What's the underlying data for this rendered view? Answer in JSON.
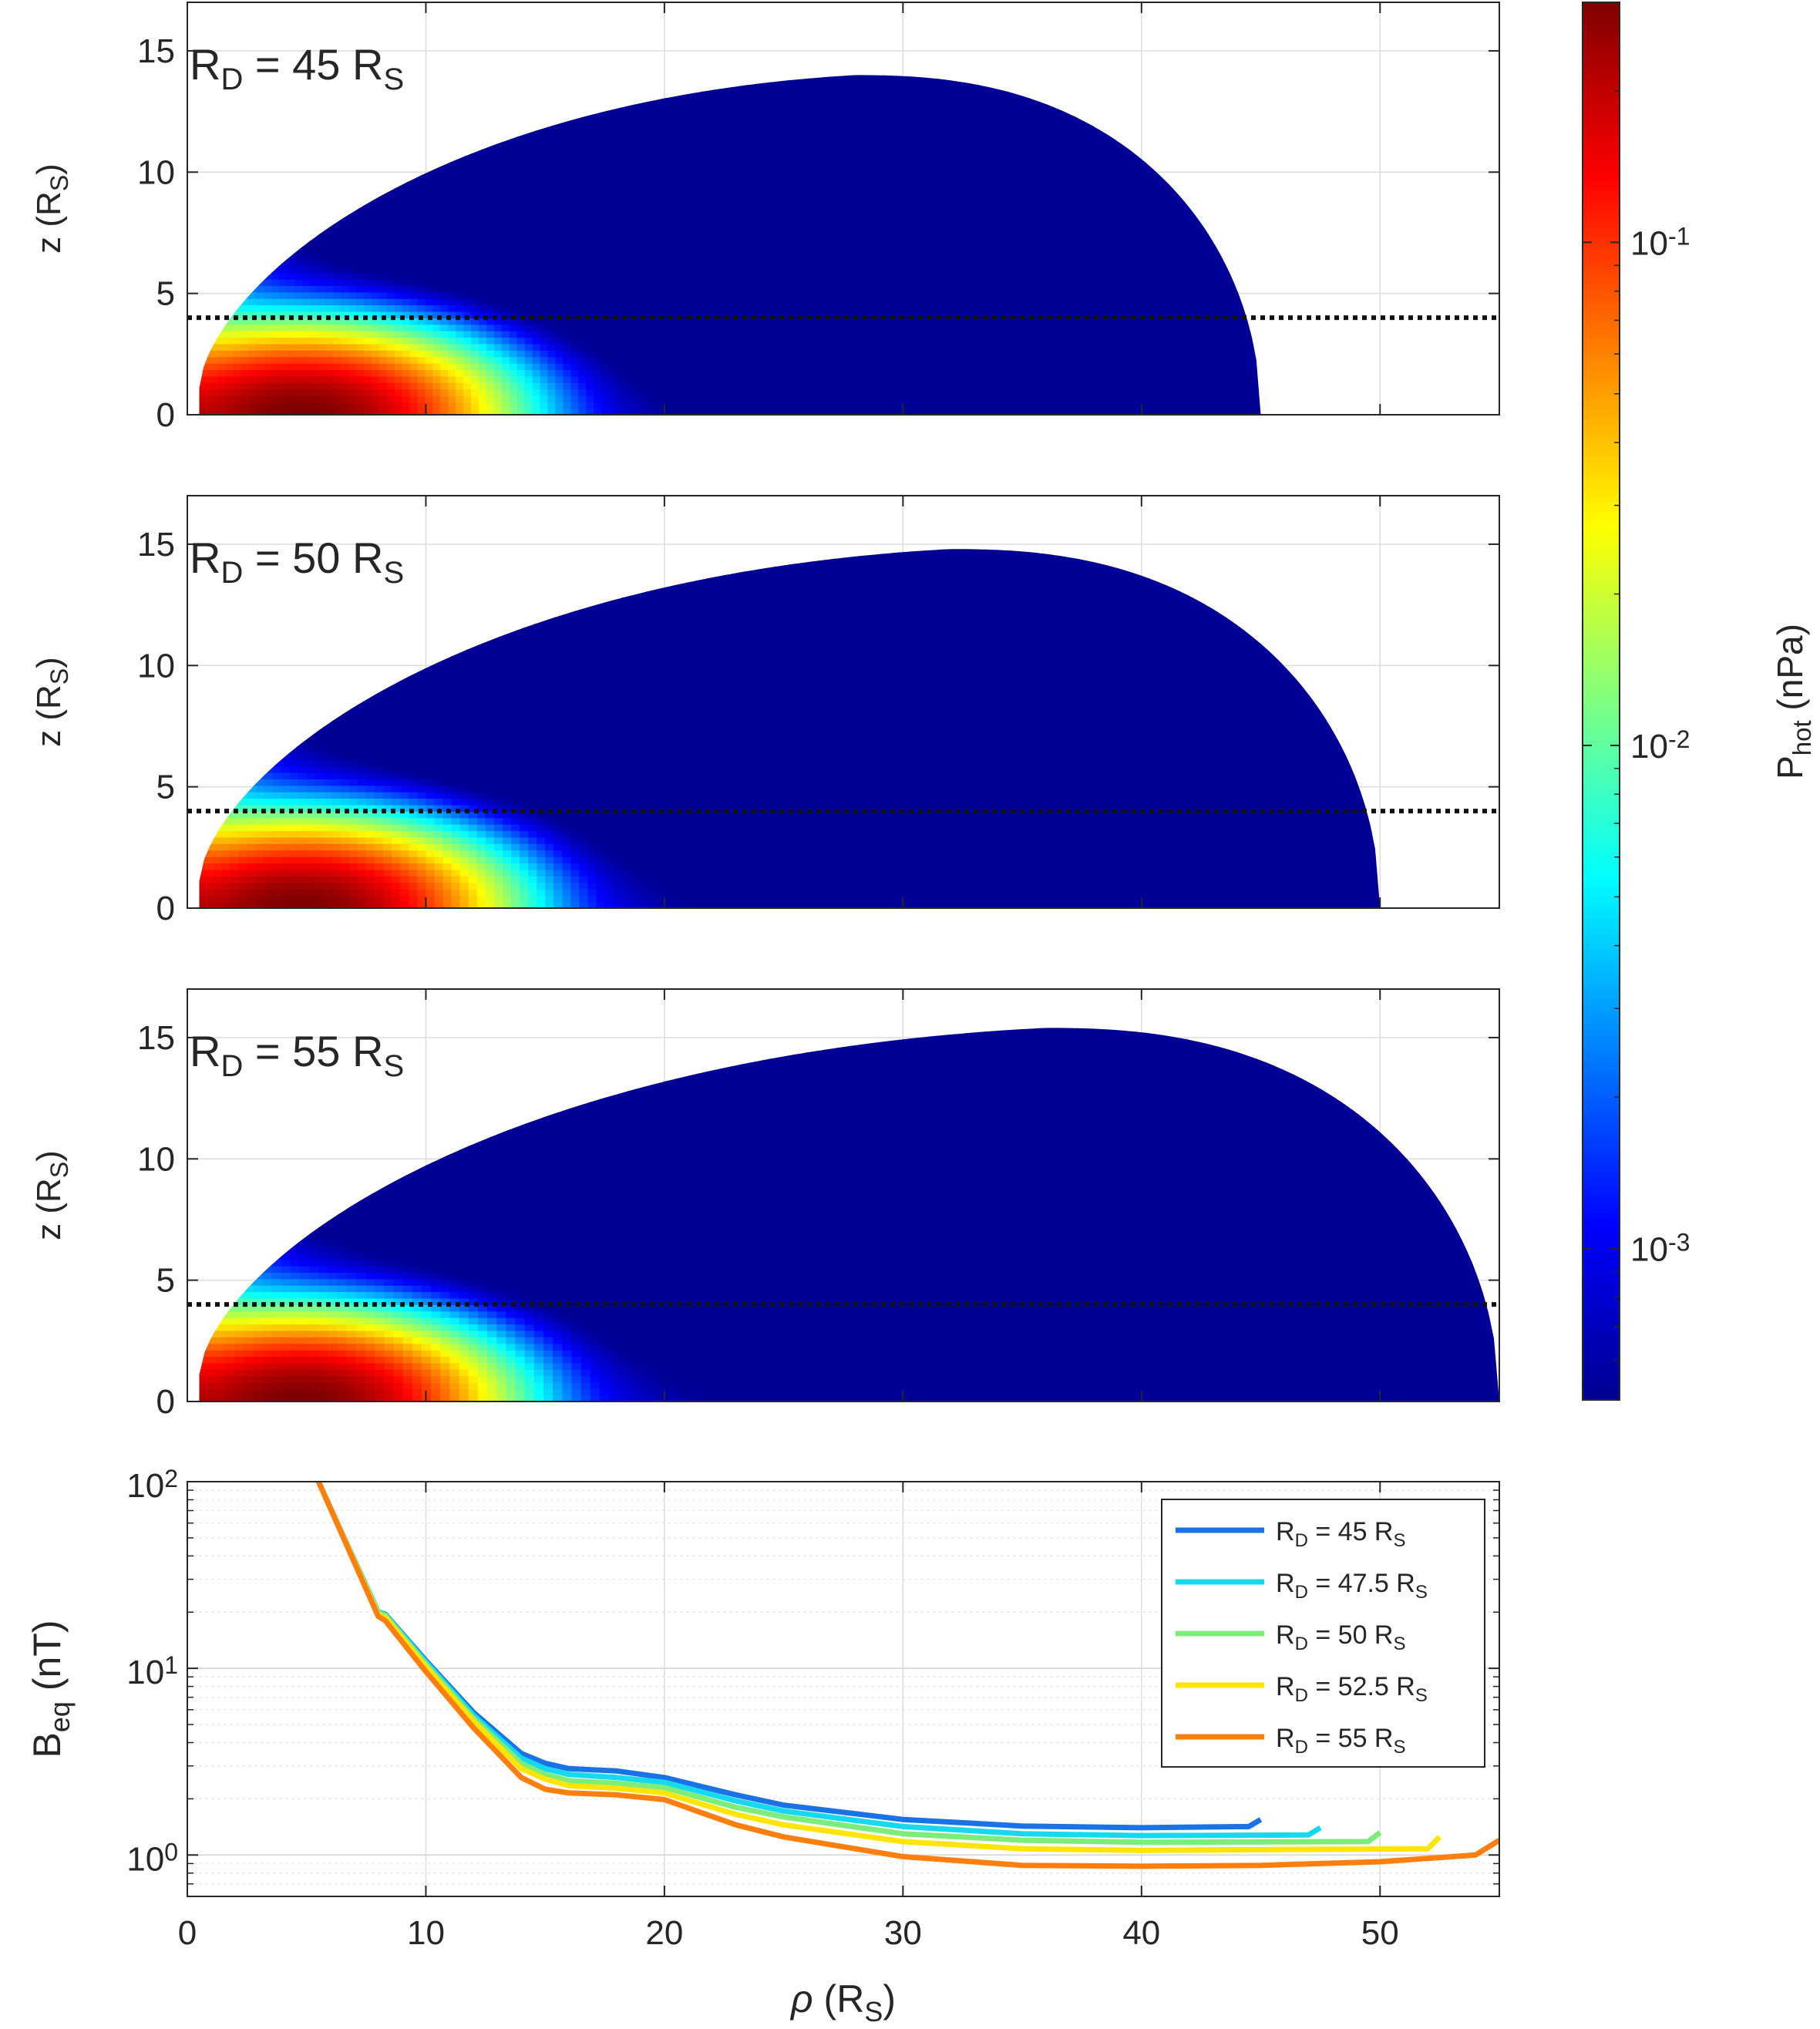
{
  "chart_data": [
    {
      "type": "heatmap",
      "panel_label": {
        "pre": "R",
        "sub": "D",
        "mid": " = 45 R",
        "sub2": "S"
      },
      "disk_radius": 45,
      "peak": [
        28,
        14
      ],
      "xlim": [
        0,
        55
      ],
      "ylim": [
        0,
        17
      ],
      "yticks": [
        "0",
        "5",
        "10",
        "15"
      ],
      "ylabel": {
        "pre": "z (R",
        "sub": "S",
        "post": ")"
      },
      "dotted_line_z": 4
    },
    {
      "type": "heatmap",
      "panel_label": {
        "pre": "R",
        "sub": "D",
        "mid": " = 50 R",
        "sub2": "S"
      },
      "disk_radius": 50,
      "peak": [
        32,
        14.8
      ],
      "xlim": [
        0,
        55
      ],
      "ylim": [
        0,
        17
      ],
      "yticks": [
        "0",
        "5",
        "10",
        "15"
      ],
      "ylabel": {
        "pre": "z (R",
        "sub": "S",
        "post": ")"
      },
      "dotted_line_z": 4
    },
    {
      "type": "heatmap",
      "panel_label": {
        "pre": "R",
        "sub": "D",
        "mid": " = 55 R",
        "sub2": "S"
      },
      "disk_radius": 55,
      "peak": [
        36,
        15.4
      ],
      "xlim": [
        0,
        55
      ],
      "ylim": [
        0,
        17
      ],
      "yticks": [
        "0",
        "5",
        "10",
        "15"
      ],
      "ylabel": {
        "pre": "z (R",
        "sub": "S",
        "post": ")"
      },
      "dotted_line_z": 4
    },
    {
      "type": "line",
      "xlim": [
        0,
        55
      ],
      "ylim": [
        0.6,
        100
      ],
      "y_scale": "log",
      "xticks": [
        "0",
        "10",
        "20",
        "30",
        "40",
        "50"
      ],
      "yticks": [
        {
          "base": "10",
          "exp": "0",
          "value": 1
        },
        {
          "base": "10",
          "exp": "1",
          "value": 10
        },
        {
          "base": "10",
          "exp": "2",
          "value": 100
        }
      ],
      "xlabel": {
        "pre": "ρ",
        "mid": " (R",
        "sub": "S",
        "post": ")"
      },
      "ylabel": {
        "pre": "B",
        "sub": "eq",
        "post": " (nT)"
      },
      "grid": true,
      "legend_position": "top-right",
      "series": [
        {
          "name": {
            "pre": "R",
            "sub": "D",
            "mid": " = 45 R",
            "sub2": "S"
          },
          "color": "#1a73e6",
          "x": [
            5.5,
            8,
            8.3,
            10,
            12,
            14,
            15,
            16,
            18,
            20,
            23,
            25,
            30,
            35,
            40,
            44.5,
            45
          ],
          "y": [
            100,
            20,
            19.5,
            11,
            5.8,
            3.5,
            3.1,
            2.9,
            2.82,
            2.6,
            2.1,
            1.85,
            1.55,
            1.43,
            1.4,
            1.42,
            1.55
          ]
        },
        {
          "name": {
            "pre": "R",
            "sub": "D",
            "mid": " = 47.5 R",
            "sub2": "S"
          },
          "color": "#17d9ee",
          "x": [
            5.5,
            8,
            8.3,
            10,
            12,
            14,
            15,
            16,
            18,
            20,
            23,
            25,
            30,
            35,
            40,
            47,
            47.5
          ],
          "y": [
            100,
            20,
            19.4,
            10.8,
            5.6,
            3.3,
            2.9,
            2.7,
            2.6,
            2.45,
            1.95,
            1.72,
            1.42,
            1.3,
            1.27,
            1.28,
            1.4
          ]
        },
        {
          "name": {
            "pre": "R",
            "sub": "D",
            "mid": " = 50 R",
            "sub2": "S"
          },
          "color": "#7ded7a",
          "x": [
            5.5,
            8,
            8.3,
            10,
            12,
            14,
            15,
            16,
            18,
            20,
            23,
            25,
            30,
            35,
            40,
            49.5,
            50
          ],
          "y": [
            100,
            19.8,
            19.2,
            10.5,
            5.4,
            3.1,
            2.7,
            2.5,
            2.42,
            2.3,
            1.8,
            1.6,
            1.3,
            1.2,
            1.17,
            1.18,
            1.32
          ]
        },
        {
          "name": {
            "pre": "R",
            "sub": "D",
            "mid": " = 52.5 R",
            "sub2": "S"
          },
          "color": "#ffe500",
          "x": [
            5.5,
            8,
            8.3,
            10,
            12,
            14,
            15,
            16,
            18,
            20,
            23,
            25,
            30,
            35,
            40,
            52,
            52.5
          ],
          "y": [
            100,
            19.4,
            18.7,
            10.2,
            5.2,
            2.9,
            2.55,
            2.35,
            2.28,
            2.15,
            1.65,
            1.45,
            1.18,
            1.08,
            1.06,
            1.08,
            1.25
          ]
        },
        {
          "name": {
            "pre": "R",
            "sub": "D",
            "mid": " = 55 R",
            "sub2": "S"
          },
          "color": "#ff7f0e",
          "x": [
            5.5,
            8,
            8.3,
            10,
            12,
            14,
            15,
            16,
            18,
            20,
            23,
            25,
            30,
            35,
            40,
            45,
            50,
            54,
            55
          ],
          "y": [
            100,
            19,
            18,
            9.6,
            4.8,
            2.6,
            2.25,
            2.15,
            2.1,
            1.98,
            1.45,
            1.25,
            0.98,
            0.88,
            0.87,
            0.88,
            0.92,
            1.0,
            1.2
          ]
        }
      ]
    }
  ],
  "colorbar": {
    "label": {
      "pre": "P",
      "sub": "hot",
      "post": " (nPa)"
    },
    "scale": "log",
    "range": [
      0.0005,
      0.3
    ],
    "ticks": [
      {
        "base": "10",
        "exp": "-3",
        "value": 0.001
      },
      {
        "base": "10",
        "exp": "-2",
        "value": 0.01
      },
      {
        "base": "10",
        "exp": "-1",
        "value": 0.1
      }
    ],
    "stops": [
      "#00008f",
      "#0000ff",
      "#0080ff",
      "#00ffff",
      "#80ff80",
      "#ffff00",
      "#ff8000",
      "#ff0000",
      "#800000"
    ]
  }
}
